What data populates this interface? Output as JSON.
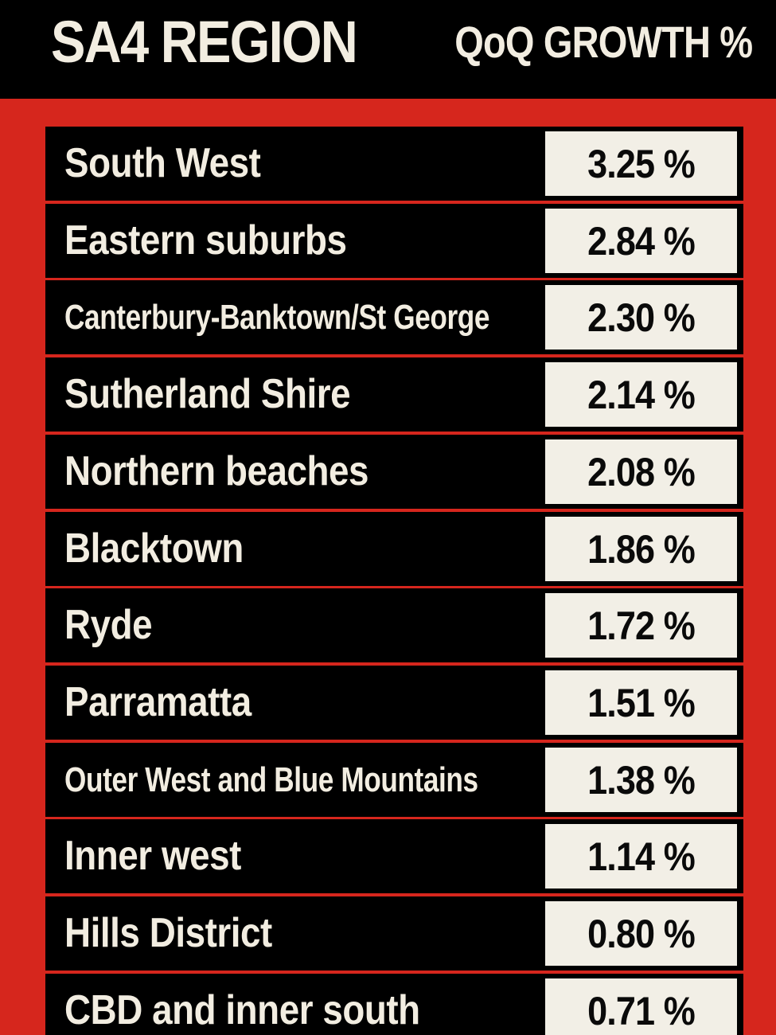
{
  "header": {
    "left": "SA4 REGION",
    "right": "QoQ GROWTH %"
  },
  "colors": {
    "background_red": "#d6261d",
    "row_black": "#000000",
    "value_box": "#f2efe6",
    "text_light": "#f2ede1"
  },
  "chart_data": {
    "type": "table",
    "columns": [
      "SA4 REGION",
      "QoQ GROWTH %"
    ],
    "rows": [
      {
        "region": "South West",
        "value": 3.25,
        "label": "3.25 %"
      },
      {
        "region": "Eastern suburbs",
        "value": 2.84,
        "label": "2.84 %"
      },
      {
        "region": "Canterbury-Banktown/St George",
        "value": 2.3,
        "label": "2.30 %"
      },
      {
        "region": "Sutherland Shire",
        "value": 2.14,
        "label": "2.14 %"
      },
      {
        "region": "Northern beaches",
        "value": 2.08,
        "label": "2.08 %"
      },
      {
        "region": "Blacktown",
        "value": 1.86,
        "label": "1.86 %"
      },
      {
        "region": "Ryde",
        "value": 1.72,
        "label": "1.72 %"
      },
      {
        "region": "Parramatta",
        "value": 1.51,
        "label": "1.51 %"
      },
      {
        "region": "Outer West and Blue Mountains",
        "value": 1.38,
        "label": "1.38 %"
      },
      {
        "region": "Inner west",
        "value": 1.14,
        "label": "1.14 %"
      },
      {
        "region": "Hills District",
        "value": 0.8,
        "label": "0.80 %"
      },
      {
        "region": "CBD and inner south",
        "value": 0.71,
        "label": "0.71 %"
      }
    ]
  }
}
